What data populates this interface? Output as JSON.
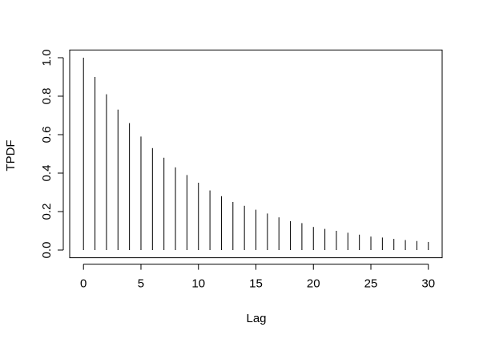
{
  "chart_data": {
    "type": "spike",
    "x_label": "Lag",
    "y_label": "TPDF",
    "color": "#000000",
    "x": [
      0,
      1,
      2,
      3,
      4,
      5,
      6,
      7,
      8,
      9,
      10,
      11,
      12,
      13,
      14,
      15,
      16,
      17,
      18,
      19,
      20,
      21,
      22,
      23,
      24,
      25,
      26,
      27,
      28,
      29,
      30
    ],
    "values": [
      1.0,
      0.9,
      0.81,
      0.73,
      0.66,
      0.59,
      0.53,
      0.48,
      0.43,
      0.39,
      0.35,
      0.31,
      0.28,
      0.25,
      0.23,
      0.21,
      0.19,
      0.17,
      0.15,
      0.14,
      0.12,
      0.11,
      0.1,
      0.09,
      0.08,
      0.07,
      0.065,
      0.058,
      0.052,
      0.047,
      0.042
    ],
    "xlim": [
      -1.2,
      31.2
    ],
    "ylim": [
      -0.04,
      1.04
    ],
    "xticks": [
      0,
      5,
      10,
      15,
      20,
      25,
      30
    ],
    "yticks": [
      {
        "value": 0,
        "label": "0.0"
      },
      0.2,
      0.4,
      0.6,
      0.8,
      {
        "value": 1,
        "label": "1.0"
      }
    ]
  }
}
